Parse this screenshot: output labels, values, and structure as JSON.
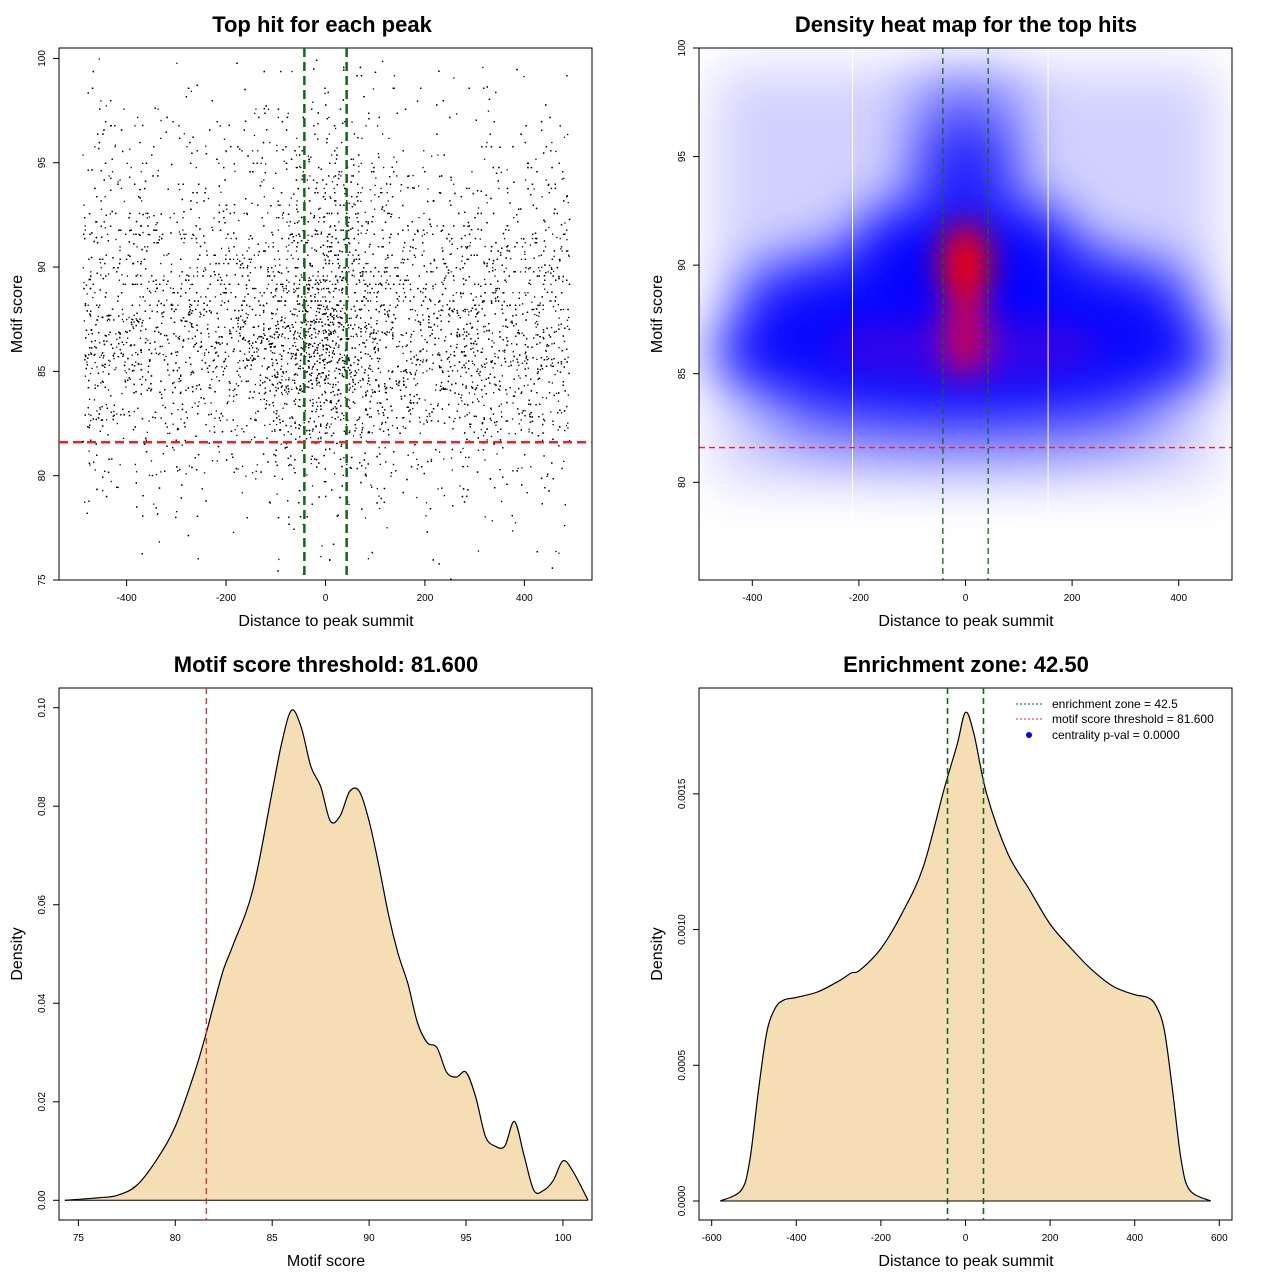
{
  "colors": {
    "threshold_line": "#e8252b",
    "zone_line": "#0b6b16",
    "fill": "#f5deb3",
    "point": "#000000",
    "heat_low": "#0000ff",
    "heat_high": "#ff0000",
    "centrality_marker": "#0000ff"
  },
  "chart_data": [
    {
      "type": "scatter",
      "title": "Top hit for each peak",
      "xlabel": "Distance to peak summit",
      "ylabel": "Motif score",
      "xlim": [
        -536,
        536
      ],
      "ylim": [
        75,
        100.5
      ],
      "xticks": [
        -400,
        -200,
        0,
        200,
        400
      ],
      "yticks": [
        75,
        80,
        85,
        90,
        95,
        100
      ],
      "x_range_of_points": [
        -490,
        490
      ],
      "hlines": [
        {
          "y": 81.6,
          "style": "dashed",
          "color": "red"
        }
      ],
      "vlines": [
        {
          "x": -42.5,
          "style": "dashed",
          "color": "darkgreen"
        },
        {
          "x": 42.5,
          "style": "dashed",
          "color": "darkgreen"
        }
      ],
      "approx_score_density": {
        "x": [
          75,
          78,
          80,
          82,
          84,
          85,
          86,
          87,
          88,
          89,
          90,
          91,
          92,
          93,
          94,
          95,
          96,
          97,
          98,
          99,
          100
        ],
        "y": [
          0.001,
          0.005,
          0.015,
          0.035,
          0.07,
          0.09,
          0.099,
          0.094,
          0.077,
          0.084,
          0.069,
          0.055,
          0.042,
          0.032,
          0.03,
          0.024,
          0.012,
          0.016,
          0.006,
          0.004,
          0.008
        ]
      }
    },
    {
      "type": "heatmap",
      "title": "Density heat map for the top hits",
      "xlabel": "Distance to peak summit",
      "ylabel": "Motif score",
      "xlim": [
        -500,
        500
      ],
      "ylim": [
        75.5,
        100
      ],
      "xticks": [
        -400,
        -200,
        0,
        200,
        400
      ],
      "yticks": [
        80,
        85,
        90,
        95,
        100
      ],
      "hlines": [
        {
          "y": 81.6,
          "style": "dashed",
          "color": "red"
        }
      ],
      "vlines": [
        {
          "x": -42.5,
          "style": "dashed",
          "color": "darkgreen"
        },
        {
          "x": 42.5,
          "style": "dashed",
          "color": "darkgreen"
        },
        {
          "x": -212,
          "style": "solid",
          "color": "white"
        },
        {
          "x": 155,
          "style": "solid",
          "color": "white"
        }
      ],
      "hotspots": [
        {
          "x": 0,
          "y": 90,
          "intensity": "high"
        },
        {
          "x": 0,
          "y": 86.5,
          "intensity": "high"
        },
        {
          "x": 0,
          "y": 86,
          "intensity": "medium",
          "spread": "wide"
        },
        {
          "x": 0,
          "y": 95,
          "intensity": "low"
        },
        {
          "x": 0,
          "y": 97.8,
          "intensity": "low"
        }
      ]
    },
    {
      "type": "area",
      "title": "Motif score threshold: 81.600",
      "xlabel": "Motif score",
      "ylabel": "Density",
      "xlim": [
        74,
        101.5
      ],
      "ylim": [
        -0.004,
        0.104
      ],
      "xticks": [
        75,
        80,
        85,
        90,
        95,
        100
      ],
      "yticks": [
        0.0,
        0.02,
        0.04,
        0.06,
        0.08,
        0.1
      ],
      "ytick_labels": [
        "0.00",
        "0.02",
        "0.04",
        "0.06",
        "0.08",
        "0.10"
      ],
      "vlines": [
        {
          "x": 81.6,
          "style": "dashed",
          "color": "red"
        }
      ],
      "x": [
        74.3,
        76,
        77,
        78,
        79,
        80,
        81,
        81.6,
        82,
        82.5,
        83,
        84,
        85,
        85.5,
        86,
        86.5,
        87,
        87.5,
        88,
        88.5,
        89,
        89.5,
        90,
        90.5,
        91,
        91.5,
        92,
        92.5,
        93,
        93.5,
        94,
        94.5,
        95,
        95.5,
        96,
        96.5,
        97,
        97.5,
        98,
        98.5,
        99,
        99.5,
        100,
        100.5,
        101.3
      ],
      "y": [
        0,
        0.0005,
        0.001,
        0.003,
        0.008,
        0.015,
        0.026,
        0.034,
        0.04,
        0.047,
        0.052,
        0.063,
        0.083,
        0.093,
        0.0995,
        0.096,
        0.088,
        0.084,
        0.077,
        0.078,
        0.083,
        0.083,
        0.077,
        0.068,
        0.058,
        0.05,
        0.044,
        0.036,
        0.032,
        0.031,
        0.026,
        0.025,
        0.026,
        0.021,
        0.013,
        0.011,
        0.011,
        0.016,
        0.009,
        0.002,
        0.002,
        0.004,
        0.008,
        0.006,
        0
      ]
    },
    {
      "type": "area",
      "title": "Enrichment zone: 42.50",
      "xlabel": "Distance to peak summit",
      "ylabel": "Density",
      "xlim": [
        -630,
        630
      ],
      "ylim": [
        -7e-05,
        0.00189
      ],
      "xticks": [
        -600,
        -400,
        -200,
        0,
        200,
        400,
        600
      ],
      "yticks": [
        0.0,
        0.0005,
        0.001,
        0.0015
      ],
      "ytick_labels": [
        "0.0000",
        "0.0005",
        "0.0010",
        "0.0015"
      ],
      "vlines": [
        {
          "x": -42.5,
          "style": "dashed",
          "color": "darkgreen"
        },
        {
          "x": 42.5,
          "style": "dashed",
          "color": "darkgreen"
        }
      ],
      "x": [
        -580,
        -530,
        -510,
        -490,
        -470,
        -450,
        -430,
        -400,
        -350,
        -300,
        -270,
        -250,
        -200,
        -150,
        -100,
        -50,
        -20,
        0,
        20,
        50,
        100,
        150,
        200,
        250,
        300,
        350,
        400,
        430,
        450,
        470,
        490,
        510,
        530,
        580
      ],
      "y": [
        0,
        4e-05,
        0.00015,
        0.0004,
        0.00062,
        0.00071,
        0.00074,
        0.00075,
        0.00077,
        0.00081,
        0.00084,
        0.00085,
        0.00093,
        0.00106,
        0.00123,
        0.00152,
        0.00168,
        0.0018,
        0.00172,
        0.0015,
        0.00128,
        0.00115,
        0.00102,
        0.00093,
        0.00085,
        0.00079,
        0.00076,
        0.00075,
        0.00072,
        0.00063,
        0.0004,
        0.00015,
        4e-05,
        0
      ],
      "legend": {
        "position": "top-right",
        "entries": [
          {
            "label": "enrichment zone = 42.5",
            "color": "darkgreen",
            "marker": "dotted-line"
          },
          {
            "label": "motif score threshold = 81.600",
            "color": "red",
            "marker": "dotted-line"
          },
          {
            "label": "centrality p-val = 0.0000",
            "color": "blue",
            "marker": "point"
          }
        ]
      }
    }
  ]
}
